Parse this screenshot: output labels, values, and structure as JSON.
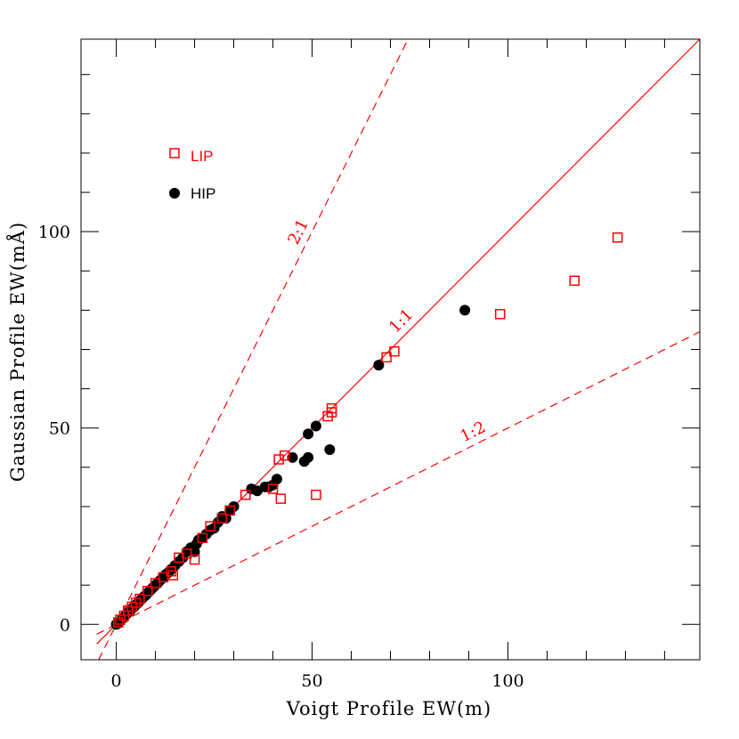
{
  "chart_data": {
    "type": "scatter",
    "title": "",
    "xlabel": "Voigt Profile EW(m)",
    "ylabel": "Gaussian Profile  EW(mÅ)",
    "xlim": [
      -9,
      149
    ],
    "ylim": [
      -9,
      149
    ],
    "x_ticks": [
      "0",
      "50",
      "100"
    ],
    "y_ticks": [
      "0",
      "50",
      "100"
    ],
    "x_tick_values": [
      0,
      50,
      100
    ],
    "y_tick_values": [
      0,
      50,
      100
    ],
    "legend_position": "top-left",
    "colors": {
      "LIP": "#ff0000",
      "HIP": "#000000",
      "reference": "#ff0000"
    },
    "reference_lines": [
      {
        "label": "1:1",
        "slope": 1,
        "style": "solid"
      },
      {
        "label": "2:1",
        "slope": 2,
        "style": "dashed"
      },
      {
        "label": "1:2",
        "slope": 0.5,
        "style": "dashed"
      }
    ],
    "series": [
      {
        "name": "LIP",
        "marker": "open-square",
        "points": [
          [
            0.5,
            0.5
          ],
          [
            1,
            1.2
          ],
          [
            2,
            2.2
          ],
          [
            3,
            3.5
          ],
          [
            4,
            4.5
          ],
          [
            5,
            5.5
          ],
          [
            6,
            6.5
          ],
          [
            8,
            8.5
          ],
          [
            10,
            10.5
          ],
          [
            12,
            12
          ],
          [
            14,
            13.5
          ],
          [
            14.5,
            12.5
          ],
          [
            16,
            17
          ],
          [
            18,
            18
          ],
          [
            20,
            16.5
          ],
          [
            22,
            22
          ],
          [
            24,
            25
          ],
          [
            27,
            27
          ],
          [
            29,
            29
          ],
          [
            33,
            33
          ],
          [
            40,
            34.5
          ],
          [
            41.5,
            42
          ],
          [
            42,
            32
          ],
          [
            43,
            43
          ],
          [
            51,
            33
          ],
          [
            54,
            53
          ],
          [
            55,
            54
          ],
          [
            55,
            55
          ],
          [
            69,
            68
          ],
          [
            71,
            69.5
          ],
          [
            98,
            79
          ],
          [
            117,
            87.5
          ],
          [
            128,
            98.5
          ]
        ]
      },
      {
        "name": "HIP",
        "marker": "filled-circle",
        "points": [
          [
            0,
            0
          ],
          [
            0.5,
            0.3
          ],
          [
            1,
            0.8
          ],
          [
            1.5,
            1.4
          ],
          [
            2,
            1.8
          ],
          [
            2.5,
            2.5
          ],
          [
            3,
            3
          ],
          [
            3.5,
            3.4
          ],
          [
            4,
            4
          ],
          [
            4.5,
            4.4
          ],
          [
            5,
            5
          ],
          [
            5.5,
            5.4
          ],
          [
            6,
            6
          ],
          [
            6.5,
            6.5
          ],
          [
            7,
            7
          ],
          [
            7.5,
            7.4
          ],
          [
            8,
            8
          ],
          [
            8.5,
            8.5
          ],
          [
            9,
            9
          ],
          [
            9.5,
            9.5
          ],
          [
            10,
            10
          ],
          [
            10.5,
            10.4
          ],
          [
            11,
            11
          ],
          [
            11.5,
            11.5
          ],
          [
            12,
            12
          ],
          [
            12.5,
            12.6
          ],
          [
            13,
            13
          ],
          [
            13.5,
            13.4
          ],
          [
            14,
            14
          ],
          [
            15,
            15
          ],
          [
            16,
            16
          ],
          [
            17,
            17
          ],
          [
            18,
            18.5
          ],
          [
            19,
            19.5
          ],
          [
            20,
            18.5
          ],
          [
            20.5,
            20.5
          ],
          [
            21,
            21.5
          ],
          [
            22,
            22
          ],
          [
            23,
            23
          ],
          [
            24,
            24
          ],
          [
            25,
            24.5
          ],
          [
            26,
            26
          ],
          [
            27,
            27.5
          ],
          [
            28,
            27
          ],
          [
            29,
            29
          ],
          [
            30,
            30
          ],
          [
            34.5,
            34.5
          ],
          [
            36,
            34
          ],
          [
            38,
            35
          ],
          [
            39,
            35
          ],
          [
            40,
            35.5
          ],
          [
            41,
            37
          ],
          [
            45,
            42.5
          ],
          [
            48,
            41.5
          ],
          [
            49,
            42.5
          ],
          [
            49,
            48.5
          ],
          [
            51,
            50.5
          ],
          [
            54.5,
            44.5
          ],
          [
            67,
            66
          ],
          [
            89,
            80
          ]
        ]
      }
    ]
  }
}
